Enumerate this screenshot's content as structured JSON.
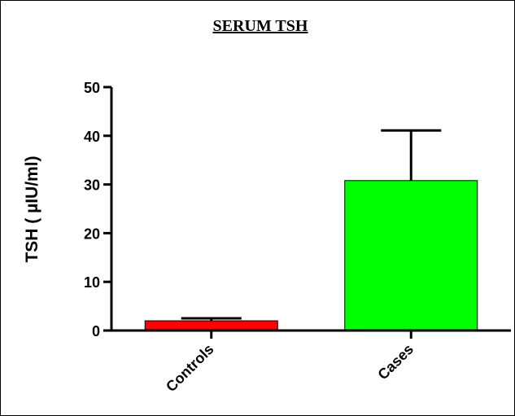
{
  "chart_data": {
    "type": "bar",
    "title": "SERUM TSH",
    "y_label": "TSH ( µIU/ml)",
    "categories": [
      "Controls",
      "Cases"
    ],
    "values": [
      2.0,
      30.8
    ],
    "errors": [
      0.5,
      10.3
    ],
    "colors": [
      "#ff0000",
      "#00ff00"
    ],
    "ylim": [
      0,
      50
    ],
    "yticks": [
      0,
      10,
      20,
      30,
      40,
      50
    ]
  }
}
